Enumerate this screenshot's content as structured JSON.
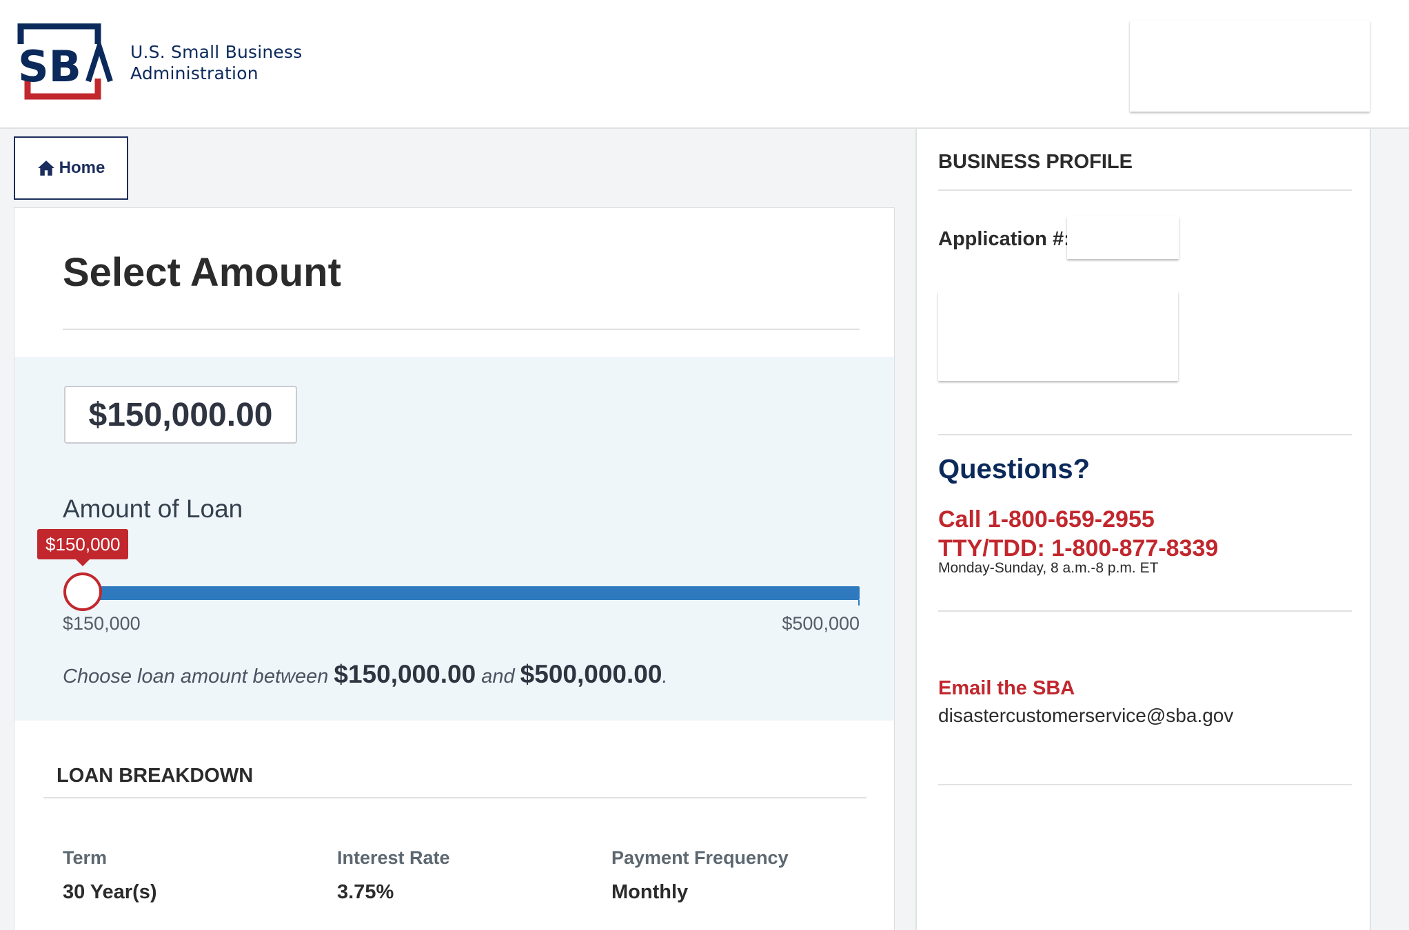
{
  "header": {
    "logo_letters": "SBA",
    "org_line1": "U.S. Small Business",
    "org_line2": "Administration"
  },
  "nav": {
    "home_label": "Home",
    "home_icon": "home-icon"
  },
  "main": {
    "title": "Select Amount",
    "amount_value": "$150,000.00",
    "slider_label": "Amount of Loan",
    "slider_tooltip": "$150,000",
    "slider_min_label": "$150,000",
    "slider_max_label": "$500,000",
    "slider_value_fraction": 0,
    "choose_prefix": "Choose loan amount between",
    "choose_min": "$150,000.00",
    "choose_and": "and",
    "choose_max": "$500,000.00",
    "choose_suffix": ".",
    "breakdown_heading": "LOAN BREAKDOWN",
    "breakdown": {
      "term_label": "Term",
      "term_value": "30 Year(s)",
      "rate_label": "Interest Rate",
      "rate_value": "3.75%",
      "frequency_label": "Payment Frequency",
      "frequency_value": "Monthly"
    }
  },
  "sidebar": {
    "heading": "BUSINESS PROFILE",
    "application_label": "Application #:",
    "questions_heading": "Questions?",
    "call_line": "Call 1-800-659-2955",
    "tty_line": "TTY/TDD: 1-800-877-8339",
    "hours": "Monday-Sunday, 8 a.m.-8 p.m. ET",
    "email_label": "Email the SBA",
    "email": "disastercustomerservice@sba.gov"
  },
  "colors": {
    "brand_navy": "#0b2a5b",
    "brand_red": "#c1272d",
    "slider_blue": "#2f7abf"
  }
}
